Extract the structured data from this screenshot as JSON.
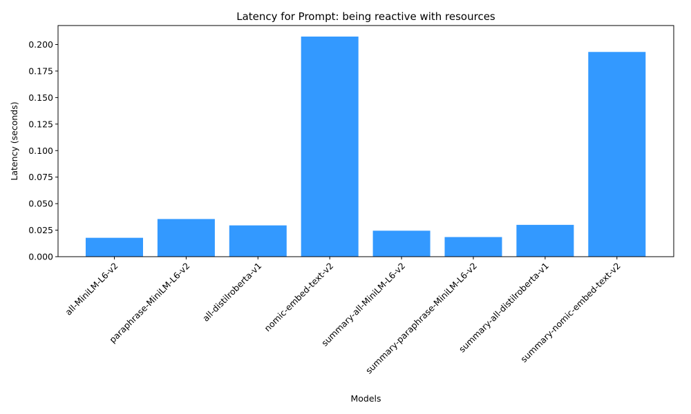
{
  "chart_data": {
    "type": "bar",
    "title": "Latency for Prompt: being reactive with resources",
    "xlabel": "Models",
    "ylabel": "Latency (seconds)",
    "categories": [
      "all-MiniLM-L6-v2",
      "paraphrase-MiniLM-L6-v2",
      "all-distilroberta-v1",
      "nomic-embed-text-v2",
      "summary-all-MiniLM-L6-v2",
      "summary-paraphrase-MiniLM-L6-v2",
      "summary-all-distilroberta-v1",
      "summary-nomic-embed-text-v2"
    ],
    "values": [
      0.0178,
      0.0355,
      0.0295,
      0.2075,
      0.0245,
      0.0185,
      0.03,
      0.193
    ],
    "ylim": [
      0,
      0.2179
    ],
    "yticks": [
      0.0,
      0.025,
      0.05,
      0.075,
      0.1,
      0.125,
      0.15,
      0.175,
      0.2
    ],
    "ytick_labels": [
      "0.000",
      "0.025",
      "0.050",
      "0.075",
      "0.100",
      "0.125",
      "0.150",
      "0.175",
      "0.200"
    ],
    "grid": false,
    "bar_color": "#3399ff"
  }
}
